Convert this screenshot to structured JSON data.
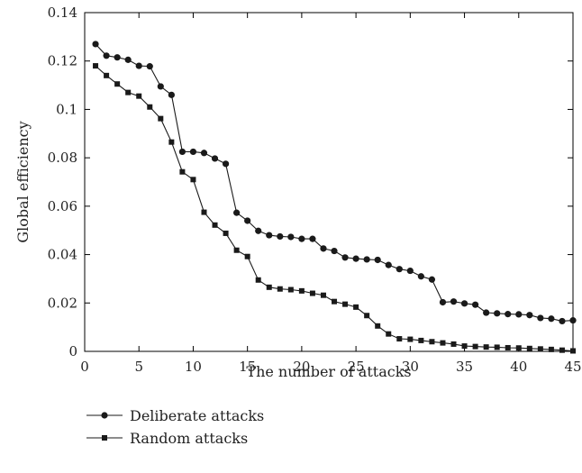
{
  "chart_data": {
    "type": "line",
    "title": "",
    "xlabel": "The number of attacks",
    "ylabel": "Global efficiency",
    "xlim": [
      0,
      45
    ],
    "ylim": [
      0,
      0.14
    ],
    "xticks": [
      0,
      5,
      10,
      15,
      20,
      25,
      30,
      35,
      40,
      45
    ],
    "xtick_labels": [
      "0",
      "5",
      "10",
      "15",
      "20",
      "25",
      "30",
      "35",
      "40",
      "45"
    ],
    "yticks": [
      0,
      0.02,
      0.04,
      0.06,
      0.08,
      0.1,
      0.12,
      0.14
    ],
    "ytick_labels": [
      "0",
      "0.02",
      "0.04",
      "0.06",
      "0.08",
      "0.1",
      "0.12",
      "0.14"
    ],
    "grid": false,
    "legend_position": "below",
    "colors": {
      "line": "#1a1a1a",
      "axis": "#000000"
    },
    "series": [
      {
        "name": "Deliberate attacks",
        "marker": "circle",
        "x": [
          1,
          2,
          3,
          4,
          5,
          6,
          7,
          8,
          9,
          10,
          11,
          12,
          13,
          14,
          15,
          16,
          17,
          18,
          19,
          20,
          21,
          22,
          23,
          24,
          25,
          26,
          27,
          28,
          29,
          30,
          31,
          32,
          33,
          34,
          35,
          36,
          37,
          38,
          39,
          40,
          41,
          42,
          43,
          44,
          45
        ],
        "values": [
          0.127,
          0.1222,
          0.1215,
          0.1205,
          0.118,
          0.1178,
          0.1095,
          0.106,
          0.0825,
          0.0825,
          0.082,
          0.0797,
          0.0775,
          0.0573,
          0.054,
          0.0498,
          0.048,
          0.0475,
          0.0473,
          0.0465,
          0.0465,
          0.0425,
          0.0415,
          0.0388,
          0.0383,
          0.038,
          0.0378,
          0.0357,
          0.034,
          0.0333,
          0.031,
          0.0297,
          0.0203,
          0.0206,
          0.0198,
          0.0193,
          0.016,
          0.0157,
          0.0154,
          0.0153,
          0.015,
          0.0138,
          0.0135,
          0.0125,
          0.0128
        ]
      },
      {
        "name": "Random attacks",
        "marker": "square",
        "x": [
          1,
          2,
          3,
          4,
          5,
          6,
          7,
          8,
          9,
          10,
          11,
          12,
          13,
          14,
          15,
          16,
          17,
          18,
          19,
          20,
          21,
          22,
          23,
          24,
          25,
          26,
          27,
          28,
          29,
          30,
          31,
          32,
          33,
          34,
          35,
          36,
          37,
          38,
          39,
          40,
          41,
          42,
          43,
          44,
          45
        ],
        "values": [
          0.118,
          0.114,
          0.1105,
          0.107,
          0.1055,
          0.101,
          0.0962,
          0.0865,
          0.0742,
          0.071,
          0.0575,
          0.0522,
          0.0488,
          0.0418,
          0.0392,
          0.0295,
          0.0265,
          0.0258,
          0.0255,
          0.025,
          0.024,
          0.0232,
          0.0206,
          0.0195,
          0.0183,
          0.0148,
          0.0105,
          0.0072,
          0.0052,
          0.005,
          0.0045,
          0.004,
          0.0035,
          0.003,
          0.0022,
          0.002,
          0.0018,
          0.0017,
          0.0015,
          0.0014,
          0.0012,
          0.001,
          0.0008,
          0.0005,
          0.0002
        ]
      }
    ]
  }
}
